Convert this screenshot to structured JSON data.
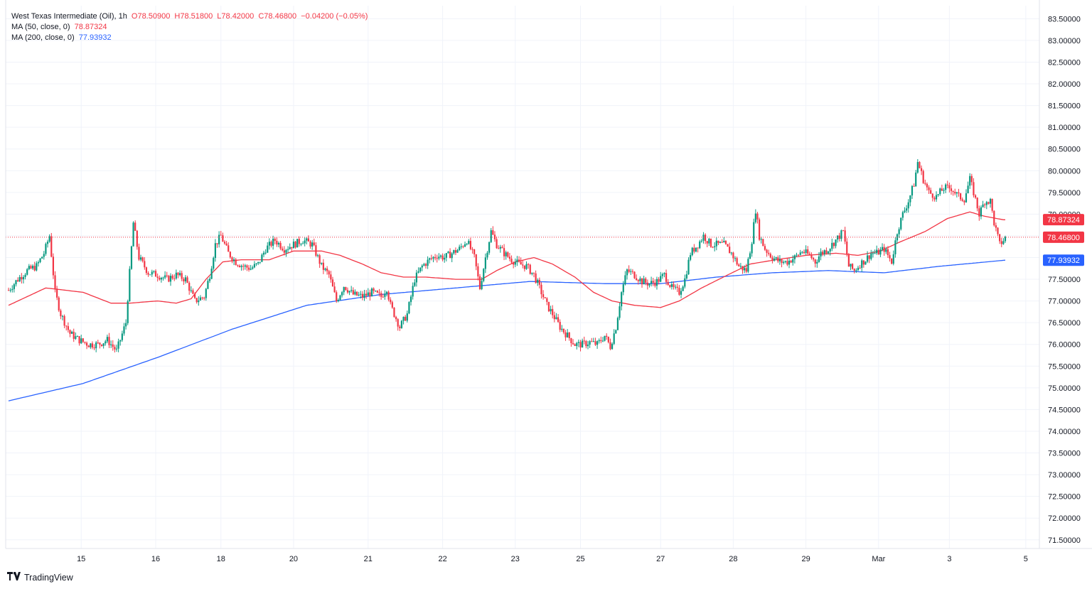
{
  "legend": {
    "symbol": "West Texas Intermediate (Oil), 1h",
    "open": "O78.50900",
    "high": "H78.51800",
    "low": "L78.42000",
    "close": "C78.46800",
    "change": "−0.04200 (−0.05%)",
    "ma50_label": "MA (50, close, 0)",
    "ma50_value": "78.87324",
    "ma200_label": "MA (200, close, 0)",
    "ma200_value": "77.93932"
  },
  "brand": {
    "name": "TradingView"
  },
  "colors": {
    "up": "#089981",
    "down": "#f23645",
    "ma50": "#f23645",
    "ma200": "#2962ff",
    "grid": "#f0f3fa",
    "border": "#e0e3eb"
  },
  "chart_data": {
    "type": "candlestick",
    "title": "West Texas Intermediate (Oil), 1h",
    "ylim": [
      71.3,
      83.8
    ],
    "y_ticks": [
      "83.50000",
      "83.00000",
      "82.50000",
      "82.00000",
      "81.50000",
      "81.00000",
      "80.50000",
      "80.00000",
      "79.50000",
      "79.00000",
      "78.50000",
      "78.00000",
      "77.50000",
      "77.00000",
      "76.50000",
      "76.00000",
      "75.50000",
      "75.00000",
      "74.50000",
      "74.00000",
      "73.50000",
      "73.00000",
      "72.50000",
      "72.00000",
      "71.50000"
    ],
    "x_tick_labels": [
      "15",
      "16",
      "18",
      "20",
      "21",
      "22",
      "23",
      "25",
      "27",
      "28",
      "29",
      "Mar",
      "3",
      "5"
    ],
    "x_tick_index": [
      39,
      79,
      114,
      153,
      193,
      233,
      272,
      307,
      350,
      389,
      428,
      467,
      505,
      546
    ],
    "last_price": {
      "value": 78.468,
      "label": "78.46800"
    },
    "ma50_badge": {
      "value": 78.87324,
      "label": "78.87324"
    },
    "ma200_badge": {
      "value": 77.93932,
      "label": "77.93932"
    },
    "anchors": [
      [
        0,
        77.25
      ],
      [
        5,
        77.5
      ],
      [
        10,
        77.7
      ],
      [
        15,
        77.8
      ],
      [
        19,
        78.1
      ],
      [
        22,
        78.5
      ],
      [
        25,
        77.2
      ],
      [
        28,
        76.7
      ],
      [
        33,
        76.25
      ],
      [
        38,
        76.1
      ],
      [
        43,
        76.0
      ],
      [
        48,
        76.0
      ],
      [
        53,
        76.1
      ],
      [
        58,
        75.85
      ],
      [
        63,
        76.5
      ],
      [
        67,
        78.8
      ],
      [
        70,
        78.0
      ],
      [
        75,
        77.65
      ],
      [
        80,
        77.6
      ],
      [
        85,
        77.5
      ],
      [
        90,
        77.6
      ],
      [
        95,
        77.5
      ],
      [
        100,
        77.0
      ],
      [
        105,
        77.1
      ],
      [
        108,
        77.6
      ],
      [
        111,
        78.3
      ],
      [
        114,
        78.5
      ],
      [
        118,
        78.1
      ],
      [
        122,
        77.9
      ],
      [
        126,
        77.8
      ],
      [
        130,
        77.75
      ],
      [
        134,
        77.85
      ],
      [
        138,
        78.2
      ],
      [
        143,
        78.4
      ],
      [
        148,
        78.2
      ],
      [
        153,
        78.3
      ],
      [
        158,
        78.4
      ],
      [
        163,
        78.3
      ],
      [
        168,
        77.8
      ],
      [
        172,
        77.6
      ],
      [
        176,
        77.0
      ],
      [
        180,
        77.35
      ],
      [
        185,
        77.15
      ],
      [
        190,
        77.1
      ],
      [
        195,
        77.2
      ],
      [
        200,
        77.1
      ],
      [
        203,
        77.3
      ],
      [
        205,
        76.9
      ],
      [
        210,
        76.4
      ],
      [
        214,
        76.7
      ],
      [
        218,
        77.5
      ],
      [
        222,
        77.8
      ],
      [
        226,
        77.95
      ],
      [
        230,
        78.05
      ],
      [
        234,
        78.0
      ],
      [
        238,
        78.1
      ],
      [
        242,
        78.2
      ],
      [
        246,
        78.4
      ],
      [
        250,
        78.0
      ],
      [
        253,
        77.3
      ],
      [
        256,
        78.0
      ],
      [
        259,
        78.6
      ],
      [
        262,
        78.3
      ],
      [
        266,
        78.1
      ],
      [
        270,
        77.95
      ],
      [
        274,
        77.85
      ],
      [
        278,
        77.8
      ],
      [
        282,
        77.6
      ],
      [
        285,
        77.3
      ],
      [
        289,
        76.9
      ],
      [
        292,
        76.7
      ],
      [
        296,
        76.4
      ],
      [
        300,
        76.2
      ],
      [
        304,
        76.0
      ],
      [
        308,
        76.0
      ],
      [
        312,
        76.05
      ],
      [
        316,
        76.0
      ],
      [
        320,
        76.2
      ],
      [
        323,
        75.95
      ],
      [
        326,
        76.4
      ],
      [
        329,
        77.2
      ],
      [
        332,
        77.7
      ],
      [
        336,
        77.6
      ],
      [
        340,
        77.45
      ],
      [
        344,
        77.4
      ],
      [
        348,
        77.45
      ],
      [
        352,
        77.6
      ],
      [
        356,
        77.3
      ],
      [
        360,
        77.2
      ],
      [
        363,
        77.5
      ],
      [
        366,
        78.1
      ],
      [
        370,
        78.3
      ],
      [
        373,
        78.5
      ],
      [
        377,
        78.3
      ],
      [
        380,
        78.3
      ],
      [
        384,
        78.3
      ],
      [
        388,
        78.1
      ],
      [
        392,
        77.8
      ],
      [
        396,
        77.7
      ],
      [
        399,
        78.4
      ],
      [
        401,
        79.1
      ],
      [
        403,
        78.5
      ],
      [
        406,
        78.2
      ],
      [
        410,
        78.0
      ],
      [
        414,
        77.9
      ],
      [
        418,
        77.9
      ],
      [
        422,
        78.0
      ],
      [
        426,
        78.15
      ],
      [
        430,
        78.05
      ],
      [
        433,
        77.9
      ],
      [
        436,
        78.1
      ],
      [
        440,
        78.2
      ],
      [
        444,
        78.4
      ],
      [
        448,
        78.6
      ],
      [
        451,
        77.8
      ],
      [
        454,
        77.7
      ],
      [
        457,
        77.85
      ],
      [
        460,
        77.95
      ],
      [
        463,
        78.1
      ],
      [
        466,
        78.1
      ],
      [
        470,
        78.2
      ],
      [
        474,
        77.9
      ],
      [
        477,
        78.6
      ],
      [
        480,
        79.0
      ],
      [
        483,
        79.3
      ],
      [
        486,
        79.7
      ],
      [
        488,
        80.2
      ],
      [
        491,
        79.8
      ],
      [
        494,
        79.5
      ],
      [
        498,
        79.4
      ],
      [
        502,
        79.6
      ],
      [
        506,
        79.6
      ],
      [
        510,
        79.4
      ],
      [
        513,
        79.35
      ],
      [
        516,
        79.8
      ],
      [
        518,
        79.5
      ],
      [
        521,
        79.0
      ],
      [
        524,
        79.3
      ],
      [
        527,
        79.3
      ],
      [
        529,
        78.8
      ],
      [
        532,
        78.3
      ],
      [
        535,
        78.45
      ]
    ],
    "ma50_anchors": [
      [
        0,
        76.9
      ],
      [
        20,
        77.3
      ],
      [
        40,
        77.2
      ],
      [
        55,
        76.95
      ],
      [
        65,
        76.95
      ],
      [
        80,
        77.0
      ],
      [
        90,
        76.95
      ],
      [
        98,
        77.05
      ],
      [
        106,
        77.5
      ],
      [
        115,
        77.9
      ],
      [
        125,
        77.95
      ],
      [
        140,
        77.95
      ],
      [
        153,
        78.15
      ],
      [
        168,
        78.15
      ],
      [
        178,
        78.05
      ],
      [
        190,
        77.85
      ],
      [
        200,
        77.65
      ],
      [
        212,
        77.55
      ],
      [
        224,
        77.55
      ],
      [
        240,
        77.5
      ],
      [
        254,
        77.5
      ],
      [
        262,
        77.7
      ],
      [
        272,
        77.9
      ],
      [
        282,
        78.0
      ],
      [
        292,
        77.85
      ],
      [
        304,
        77.55
      ],
      [
        314,
        77.2
      ],
      [
        324,
        77.0
      ],
      [
        336,
        76.9
      ],
      [
        350,
        76.85
      ],
      [
        360,
        77.0
      ],
      [
        372,
        77.3
      ],
      [
        386,
        77.6
      ],
      [
        398,
        77.85
      ],
      [
        412,
        77.95
      ],
      [
        428,
        78.05
      ],
      [
        444,
        78.1
      ],
      [
        456,
        78.05
      ],
      [
        468,
        78.15
      ],
      [
        478,
        78.35
      ],
      [
        492,
        78.6
      ],
      [
        504,
        78.9
      ],
      [
        516,
        79.05
      ],
      [
        524,
        78.95
      ],
      [
        534,
        78.87
      ]
    ],
    "ma200_anchors": [
      [
        0,
        74.7
      ],
      [
        40,
        75.1
      ],
      [
        80,
        75.7
      ],
      [
        120,
        76.35
      ],
      [
        160,
        76.9
      ],
      [
        200,
        77.15
      ],
      [
        240,
        77.3
      ],
      [
        280,
        77.45
      ],
      [
        320,
        77.4
      ],
      [
        350,
        77.4
      ],
      [
        380,
        77.55
      ],
      [
        410,
        77.65
      ],
      [
        440,
        77.7
      ],
      [
        470,
        77.65
      ],
      [
        500,
        77.8
      ],
      [
        535,
        77.94
      ]
    ]
  }
}
